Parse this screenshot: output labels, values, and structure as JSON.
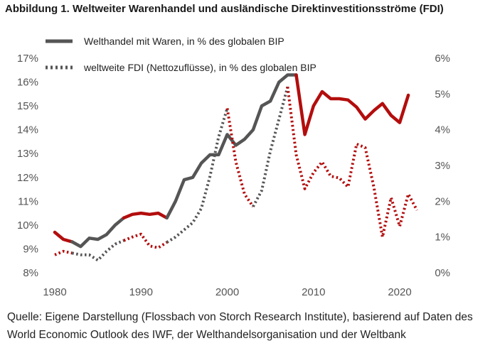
{
  "title": "Abbildung 1. Weltweiter Warenhandel und ausländische Direktinvestitionsströme (FDI)",
  "source_line1": "Quelle: Eigene Darstellung (Flossbach von Storch Research Institute), basierend auf Daten des",
  "source_line2": "World Economic Outlook des IWF, der Welthandelsorganisation und der Weltbank",
  "colors": {
    "gray": "#555555",
    "red": "#b30d0d",
    "axis_text": "#555555"
  },
  "chart_data": {
    "type": "line",
    "x_ticks": [
      "1980",
      "1990",
      "2000",
      "2010",
      "2020"
    ],
    "y_left_ticks": [
      "8%",
      "9%",
      "10%",
      "11%",
      "12%",
      "13%",
      "14%",
      "15%",
      "16%",
      "17%"
    ],
    "y_right_ticks": [
      "0%",
      "1%",
      "2%",
      "3%",
      "4%",
      "5%",
      "6%"
    ],
    "ylim_left": [
      8,
      17
    ],
    "ylim_right": [
      0,
      6
    ],
    "xlim": [
      1980,
      2022
    ],
    "legend": [
      {
        "label": "Welthandel mit Waren, in % des globalen BIP",
        "style": "solid"
      },
      {
        "label": "weltweite FDI (Nettozuflüsse), in % des globalen BIP",
        "style": "dotted"
      }
    ],
    "series": [
      {
        "name": "Welthandel mit Waren, in % des globalen BIP",
        "axis": "left",
        "style": "solid",
        "x": [
          1980,
          1981,
          1982,
          1983,
          1984,
          1985,
          1986,
          1987,
          1988,
          1989,
          1990,
          1991,
          1992,
          1993,
          1994,
          1995,
          1996,
          1997,
          1998,
          1999,
          2000,
          2001,
          2002,
          2003,
          2004,
          2005,
          2006,
          2007,
          2008,
          2009,
          2010,
          2011,
          2012,
          2013,
          2014,
          2015,
          2016,
          2017,
          2018,
          2019,
          2020,
          2021
        ],
        "y": [
          9.7,
          9.4,
          9.3,
          9.1,
          9.45,
          9.4,
          9.6,
          10.0,
          10.3,
          10.45,
          10.5,
          10.45,
          10.5,
          10.3,
          11.0,
          11.9,
          12.0,
          12.6,
          12.95,
          12.95,
          13.8,
          13.35,
          13.6,
          14.0,
          15.0,
          15.2,
          16.0,
          16.3,
          16.3,
          13.8,
          15.0,
          15.6,
          15.3,
          15.3,
          15.25,
          14.95,
          14.45,
          14.8,
          15.1,
          14.6,
          14.3,
          15.45
        ],
        "segments": [
          {
            "from": 1980,
            "to": 1982,
            "color": "red"
          },
          {
            "from": 1982,
            "to": 1988,
            "color": "gray"
          },
          {
            "from": 1988,
            "to": 1993,
            "color": "red"
          },
          {
            "from": 1993,
            "to": 2008,
            "color": "gray"
          },
          {
            "from": 2008,
            "to": 2021,
            "color": "red"
          }
        ]
      },
      {
        "name": "weltweite FDI (Nettozuflüsse), in % des globalen BIP",
        "axis": "right",
        "style": "dotted",
        "x": [
          1980,
          1981,
          1982,
          1983,
          1984,
          1985,
          1986,
          1987,
          1988,
          1989,
          1990,
          1991,
          1992,
          1993,
          1994,
          1995,
          1996,
          1997,
          1998,
          1999,
          2000,
          2001,
          2002,
          2003,
          2004,
          2005,
          2006,
          2007,
          2008,
          2009,
          2010,
          2011,
          2012,
          2013,
          2014,
          2015,
          2016,
          2017,
          2018,
          2019,
          2020,
          2021,
          2022
        ],
        "y": [
          0.5,
          0.6,
          0.55,
          0.5,
          0.5,
          0.35,
          0.6,
          0.8,
          0.9,
          1.0,
          1.08,
          0.75,
          0.7,
          0.85,
          1.0,
          1.2,
          1.4,
          1.8,
          2.7,
          3.8,
          4.6,
          3.1,
          2.2,
          1.85,
          2.3,
          3.4,
          4.3,
          5.2,
          3.3,
          2.35,
          2.8,
          3.1,
          2.7,
          2.65,
          2.4,
          3.6,
          3.5,
          2.4,
          1.0,
          2.1,
          1.3,
          2.2,
          1.75
        ],
        "segments": [
          {
            "from": 1980,
            "to": 1982,
            "color": "red"
          },
          {
            "from": 1982,
            "to": 1988,
            "color": "gray"
          },
          {
            "from": 1988,
            "to": 1993,
            "color": "red"
          },
          {
            "from": 1993,
            "to": 2000,
            "color": "gray"
          },
          {
            "from": 2000,
            "to": 2003,
            "color": "red"
          },
          {
            "from": 2003,
            "to": 2007,
            "color": "gray"
          },
          {
            "from": 2007,
            "to": 2022,
            "color": "red"
          }
        ]
      }
    ]
  }
}
